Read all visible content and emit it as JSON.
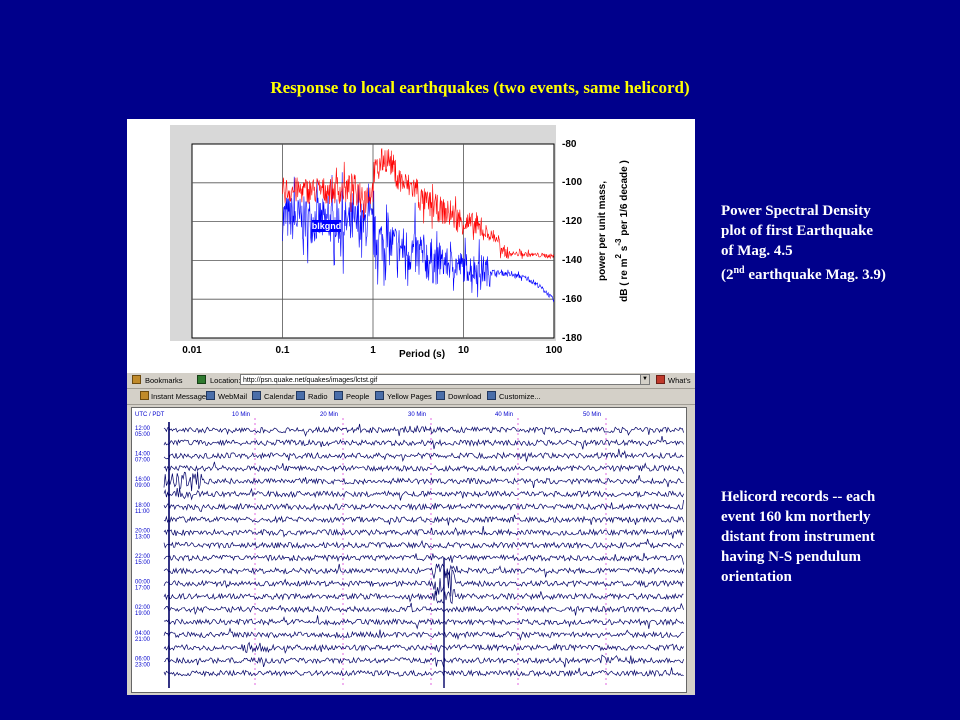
{
  "slide": {
    "title": "Response to local earthquakes  (two events, same helicord)",
    "psd_note_lines": [
      "Power Spectral Density",
      "plot of first Earthquake",
      "of Mag. 4.5"
    ],
    "psd_note_second_pre": "(2",
    "psd_note_second_sup": "nd",
    "psd_note_second_post": " earthquake Mag. 3.9)",
    "helicord_note_lines": [
      "Helicord records -- each",
      "event 160 km northerly",
      "distant from instrument",
      "having N-S pendulum",
      "orientation"
    ]
  },
  "psd_plot": {
    "x_ticks": [
      "0.01",
      "0.1",
      "1",
      "10",
      "100"
    ],
    "y_ticks": [
      "-80",
      "-100",
      "-120",
      "-140",
      "-160",
      "-180"
    ],
    "xlabel": "Period (s)",
    "ylabel_line1": "power per unit mass,",
    "ylabel_line2_pre": "dB  ( re  m",
    "ylabel_sup1": "2",
    "ylabel_mid": " s",
    "ylabel_sup2": "-3",
    "ylabel_post": "  per 1/6 decade )",
    "annotation": "blkgnd",
    "colors": {
      "earthquake": "#ff0000",
      "background": "#0000ff",
      "annotation_fill": "#0000ff",
      "grid": "#555555"
    }
  },
  "browser": {
    "toolbar": {
      "bookmarks_label": "Bookmarks",
      "location_label": "Location:",
      "url": "http://psn.quake.net/quakes/images/lctst.gif",
      "whats_label": "What's",
      "personal_links": [
        "Instant Message",
        "WebMail",
        "Calendar",
        "Radio",
        "People",
        "Yellow Pages",
        "Download",
        "Customize..."
      ]
    }
  },
  "helicord": {
    "timezone_label": "UTC / PDT",
    "minute_labels": [
      "10 Min",
      "20 Min",
      "30 Min",
      "40 Min",
      "50 Min"
    ],
    "row_labels": [
      [
        "12:00",
        "05:00"
      ],
      [
        "14:00",
        "07:00"
      ],
      [
        "16:00",
        "09:00"
      ],
      [
        "18:00",
        "11:00"
      ],
      [
        "20:00",
        "13:00"
      ],
      [
        "22:00",
        "15:00"
      ],
      [
        "00:00",
        "17:00"
      ],
      [
        "02:00",
        "19:00"
      ],
      [
        "04:00",
        "21:00"
      ],
      [
        "06:00",
        "23:00"
      ]
    ],
    "trace_color": "#000066",
    "label_color": "#0000cc"
  }
}
